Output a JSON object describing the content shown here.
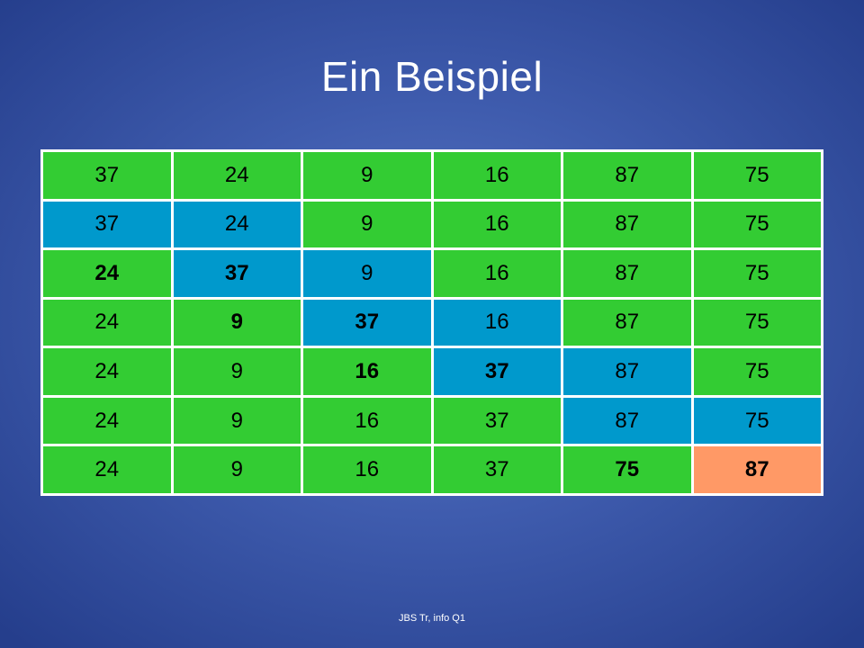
{
  "slide": {
    "title": "Ein Beispiel",
    "footer": "JBS Tr, info Q1"
  },
  "colors": {
    "default_cell": "#33cc33",
    "compared_cell": "#0099cc",
    "sorted_cell": "#ff9966",
    "background": "#4564b4"
  },
  "table": {
    "rows": [
      {
        "cells": [
          {
            "v": "37",
            "c": "g"
          },
          {
            "v": "24",
            "c": "g"
          },
          {
            "v": "9",
            "c": "g"
          },
          {
            "v": "16",
            "c": "g"
          },
          {
            "v": "87",
            "c": "g"
          },
          {
            "v": "75",
            "c": "g"
          }
        ]
      },
      {
        "cells": [
          {
            "v": "37",
            "c": "b"
          },
          {
            "v": "24",
            "c": "b"
          },
          {
            "v": "9",
            "c": "g"
          },
          {
            "v": "16",
            "c": "g"
          },
          {
            "v": "87",
            "c": "g"
          },
          {
            "v": "75",
            "c": "g"
          }
        ]
      },
      {
        "cells": [
          {
            "v": "24",
            "c": "g",
            "bold": true
          },
          {
            "v": "37",
            "c": "b",
            "bold": true
          },
          {
            "v": "9",
            "c": "b"
          },
          {
            "v": "16",
            "c": "g"
          },
          {
            "v": "87",
            "c": "g"
          },
          {
            "v": "75",
            "c": "g"
          }
        ]
      },
      {
        "cells": [
          {
            "v": "24",
            "c": "g"
          },
          {
            "v": "9",
            "c": "g",
            "bold": true
          },
          {
            "v": "37",
            "c": "b",
            "bold": true
          },
          {
            "v": "16",
            "c": "b"
          },
          {
            "v": "87",
            "c": "g"
          },
          {
            "v": "75",
            "c": "g"
          }
        ]
      },
      {
        "cells": [
          {
            "v": "24",
            "c": "g"
          },
          {
            "v": "9",
            "c": "g"
          },
          {
            "v": "16",
            "c": "g",
            "bold": true
          },
          {
            "v": "37",
            "c": "b",
            "bold": true
          },
          {
            "v": "87",
            "c": "b"
          },
          {
            "v": "75",
            "c": "g"
          }
        ]
      },
      {
        "cells": [
          {
            "v": "24",
            "c": "g"
          },
          {
            "v": "9",
            "c": "g"
          },
          {
            "v": "16",
            "c": "g"
          },
          {
            "v": "37",
            "c": "g"
          },
          {
            "v": "87",
            "c": "b"
          },
          {
            "v": "75",
            "c": "b"
          }
        ]
      },
      {
        "cells": [
          {
            "v": "24",
            "c": "g"
          },
          {
            "v": "9",
            "c": "g"
          },
          {
            "v": "16",
            "c": "g"
          },
          {
            "v": "37",
            "c": "g"
          },
          {
            "v": "75",
            "c": "g",
            "bold": true
          },
          {
            "v": "87",
            "c": "o",
            "bold": true
          }
        ]
      }
    ]
  }
}
